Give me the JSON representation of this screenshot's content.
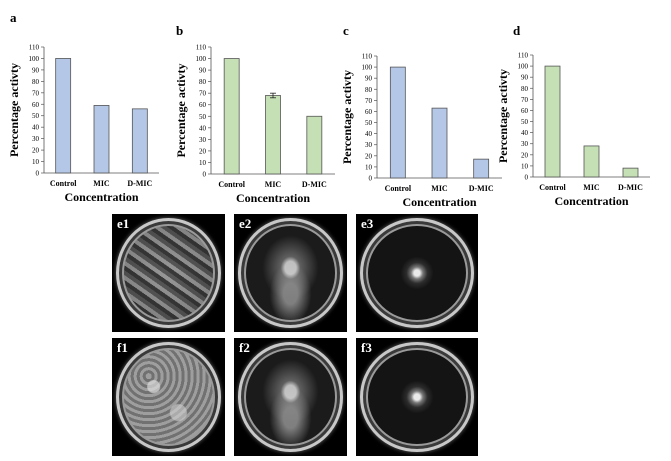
{
  "chart_data": [
    {
      "panel": "a",
      "type": "bar",
      "categories": [
        "Control",
        "MIC",
        "D-MIC"
      ],
      "values": [
        100,
        59,
        56
      ],
      "errors": [
        0,
        0,
        0
      ],
      "ylabel": "Percentage activty",
      "xlabel": "Concentration",
      "ylim": [
        0,
        110
      ],
      "yticks": [
        0,
        10,
        20,
        30,
        40,
        50,
        60,
        70,
        80,
        90,
        100,
        110
      ],
      "color": "#b4c7e7"
    },
    {
      "panel": "b",
      "type": "bar",
      "categories": [
        "Control",
        "MIC",
        "D-MIC"
      ],
      "values": [
        100,
        68,
        50
      ],
      "errors": [
        0,
        2,
        0
      ],
      "ylabel": "Percentage activty",
      "xlabel": "Concentration",
      "ylim": [
        0,
        110
      ],
      "yticks": [
        0,
        10,
        20,
        30,
        40,
        50,
        60,
        70,
        80,
        90,
        100,
        110
      ],
      "color": "#c5e0b4"
    },
    {
      "panel": "c",
      "type": "bar",
      "categories": [
        "Control",
        "MIC",
        "D-MIC"
      ],
      "values": [
        100,
        63,
        17
      ],
      "errors": [
        0,
        0,
        0
      ],
      "ylabel": "Percentage activty",
      "xlabel": "Concentration",
      "ylim": [
        0,
        110
      ],
      "yticks": [
        0,
        10,
        20,
        30,
        40,
        50,
        60,
        70,
        80,
        90,
        100,
        110
      ],
      "color": "#b4c7e7"
    },
    {
      "panel": "d",
      "type": "bar",
      "categories": [
        "Control",
        "MIC",
        "D-MIC"
      ],
      "values": [
        100,
        28,
        8
      ],
      "errors": [
        0,
        0,
        0
      ],
      "ylabel": "Percentage activty",
      "xlabel": "Concentration",
      "ylim": [
        0,
        110
      ],
      "yticks": [
        0,
        10,
        20,
        30,
        40,
        50,
        60,
        70,
        80,
        90,
        100,
        110
      ],
      "color": "#c5e0b4"
    }
  ],
  "photos": [
    {
      "label": "e1",
      "style": "fill-heavy"
    },
    {
      "label": "e2",
      "style": "fill-medium"
    },
    {
      "label": "e3",
      "style": "fill-small"
    },
    {
      "label": "f1",
      "style": "fill-grey"
    },
    {
      "label": "f2",
      "style": "fill-medium"
    },
    {
      "label": "f3",
      "style": "fill-small"
    }
  ]
}
